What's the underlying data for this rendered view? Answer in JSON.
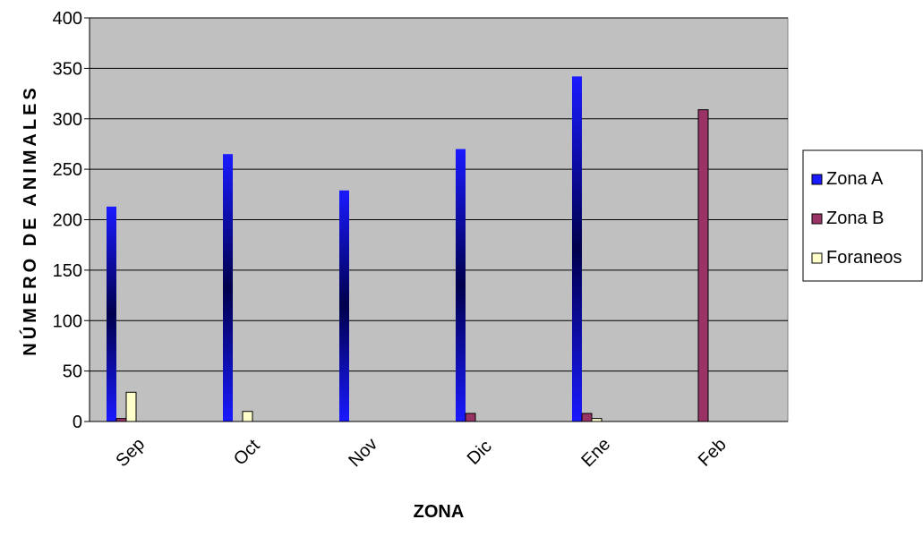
{
  "chart_data": {
    "type": "bar",
    "title": "",
    "xlabel": "ZONA",
    "ylabel": "NÚMERO DE ANIMALES",
    "categories": [
      "Sep",
      "Oct",
      "Nov",
      "Dic",
      "Ene",
      "Feb"
    ],
    "series": [
      {
        "name": "Zona A",
        "values": [
          213,
          265,
          229,
          270,
          342,
          0
        ],
        "color": "#1a1aff"
      },
      {
        "name": "Zona B",
        "values": [
          3,
          0,
          0,
          8,
          8,
          309
        ],
        "color": "#993366"
      },
      {
        "name": "Foraneos",
        "values": [
          29,
          10,
          0,
          0,
          3,
          0
        ],
        "color": "#ffffcc"
      }
    ],
    "ylim": [
      0,
      400
    ],
    "yticks": [
      0,
      50,
      100,
      150,
      200,
      250,
      300,
      350,
      400
    ],
    "grid": true,
    "plot_background": "#c0c0c0",
    "legend_position": "right"
  }
}
